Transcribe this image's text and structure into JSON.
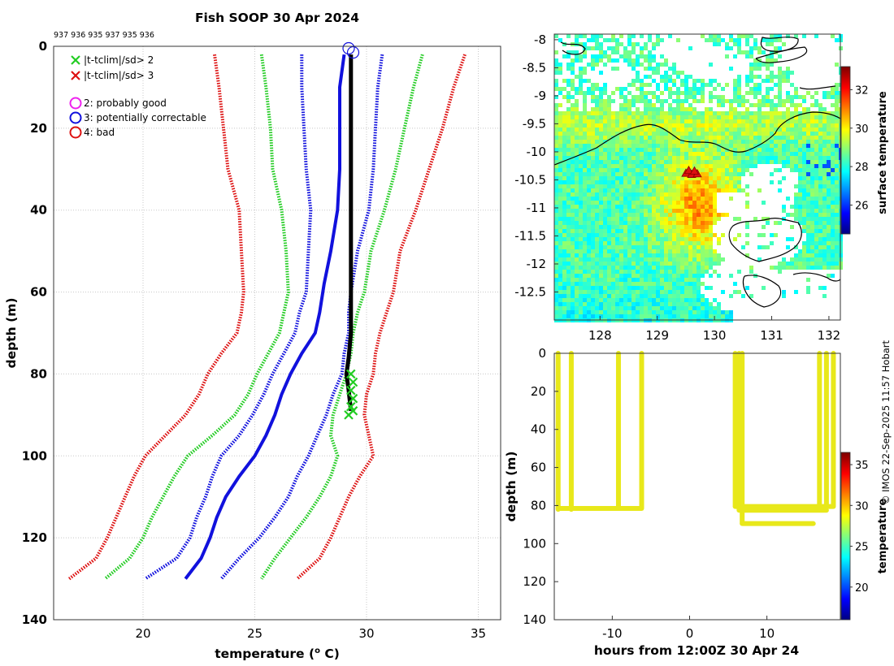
{
  "chart_data": [
    {
      "id": "profile",
      "type": "line",
      "title": "Fish SOOP 30 Apr 2024",
      "top_numbers": "937 936 935 937 935 936",
      "xlabel": "temperature (",
      "xlabel_sup": "o",
      "xlabel_end": " C)",
      "ylabel": "depth (m)",
      "xlim": [
        16,
        36
      ],
      "ylim": [
        0,
        140
      ],
      "y_reversed": true,
      "grid": true,
      "xticks": [
        20,
        25,
        30,
        35
      ],
      "yticks": [
        0,
        20,
        40,
        60,
        80,
        100,
        120,
        140
      ],
      "series": [
        {
          "name": "clim-3sd-low",
          "color": "#dd1111",
          "style": "dotted",
          "points": [
            [
              23.2,
              2
            ],
            [
              23.4,
              10
            ],
            [
              23.6,
              20
            ],
            [
              23.8,
              30
            ],
            [
              24.3,
              40
            ],
            [
              24.4,
              50
            ],
            [
              24.5,
              60
            ],
            [
              24.4,
              65
            ],
            [
              24.2,
              70
            ],
            [
              23.5,
              75
            ],
            [
              22.9,
              80
            ],
            [
              22.5,
              85
            ],
            [
              21.9,
              90
            ],
            [
              21.0,
              95
            ],
            [
              20.1,
              100
            ],
            [
              19.6,
              105
            ],
            [
              19.2,
              110
            ],
            [
              18.8,
              115
            ],
            [
              18.4,
              120
            ],
            [
              17.9,
              125
            ],
            [
              16.7,
              130
            ]
          ]
        },
        {
          "name": "clim-2sd-low",
          "color": "#22cc22",
          "style": "dotted",
          "points": [
            [
              25.3,
              2
            ],
            [
              25.5,
              10
            ],
            [
              25.7,
              20
            ],
            [
              25.8,
              30
            ],
            [
              26.2,
              40
            ],
            [
              26.4,
              50
            ],
            [
              26.5,
              60
            ],
            [
              26.3,
              65
            ],
            [
              26.1,
              70
            ],
            [
              25.6,
              75
            ],
            [
              25.1,
              80
            ],
            [
              24.7,
              85
            ],
            [
              24.1,
              90
            ],
            [
              23.1,
              95
            ],
            [
              22.0,
              100
            ],
            [
              21.4,
              105
            ],
            [
              20.9,
              110
            ],
            [
              20.4,
              115
            ],
            [
              20.0,
              120
            ],
            [
              19.4,
              125
            ],
            [
              18.3,
              130
            ]
          ]
        },
        {
          "name": "clim-mean",
          "color": "#1111dd",
          "style": "solid",
          "points": [
            [
              29.0,
              2
            ],
            [
              28.8,
              10
            ],
            [
              28.8,
              20
            ],
            [
              28.8,
              30
            ],
            [
              28.7,
              40
            ],
            [
              28.4,
              50
            ],
            [
              28.1,
              58
            ],
            [
              27.9,
              65
            ],
            [
              27.7,
              70
            ],
            [
              27.1,
              75
            ],
            [
              26.6,
              80
            ],
            [
              26.2,
              85
            ],
            [
              25.9,
              90
            ],
            [
              25.5,
              95
            ],
            [
              25.0,
              100
            ],
            [
              24.3,
              105
            ],
            [
              23.7,
              110
            ],
            [
              23.3,
              115
            ],
            [
              23.0,
              120
            ],
            [
              22.6,
              125
            ],
            [
              21.9,
              130
            ]
          ]
        },
        {
          "name": "clim-1sd-low",
          "color": "#1111dd",
          "style": "dotted",
          "points": [
            [
              27.1,
              2
            ],
            [
              27.1,
              10
            ],
            [
              27.2,
              20
            ],
            [
              27.3,
              30
            ],
            [
              27.5,
              40
            ],
            [
              27.4,
              50
            ],
            [
              27.3,
              60
            ],
            [
              27.0,
              65
            ],
            [
              26.8,
              70
            ],
            [
              26.3,
              75
            ],
            [
              25.8,
              80
            ],
            [
              25.4,
              85
            ],
            [
              24.9,
              90
            ],
            [
              24.3,
              95
            ],
            [
              23.5,
              100
            ],
            [
              23.1,
              105
            ],
            [
              22.8,
              110
            ],
            [
              22.4,
              115
            ],
            [
              22.1,
              120
            ],
            [
              21.5,
              125
            ],
            [
              20.1,
              130
            ]
          ]
        },
        {
          "name": "clim-1sd-high",
          "color": "#1111dd",
          "style": "dotted",
          "points": [
            [
              30.7,
              2
            ],
            [
              30.5,
              10
            ],
            [
              30.4,
              20
            ],
            [
              30.3,
              30
            ],
            [
              30.1,
              40
            ],
            [
              29.6,
              50
            ],
            [
              29.3,
              60
            ],
            [
              29.2,
              65
            ],
            [
              29.2,
              70
            ],
            [
              29.0,
              75
            ],
            [
              28.9,
              80
            ],
            [
              28.5,
              85
            ],
            [
              28.2,
              90
            ],
            [
              27.8,
              95
            ],
            [
              27.4,
              100
            ],
            [
              26.9,
              105
            ],
            [
              26.5,
              110
            ],
            [
              25.9,
              115
            ],
            [
              25.2,
              120
            ],
            [
              24.3,
              125
            ],
            [
              23.5,
              130
            ]
          ]
        },
        {
          "name": "clim-2sd-high",
          "color": "#22cc22",
          "style": "dotted",
          "points": [
            [
              32.5,
              2
            ],
            [
              32.1,
              10
            ],
            [
              31.7,
              20
            ],
            [
              31.3,
              30
            ],
            [
              30.8,
              40
            ],
            [
              30.2,
              50
            ],
            [
              29.9,
              60
            ],
            [
              29.6,
              65
            ],
            [
              29.4,
              70
            ],
            [
              29.3,
              75
            ],
            [
              29.1,
              80
            ],
            [
              28.8,
              85
            ],
            [
              28.5,
              90
            ],
            [
              28.4,
              95
            ],
            [
              28.7,
              100
            ],
            [
              28.4,
              105
            ],
            [
              27.9,
              110
            ],
            [
              27.3,
              115
            ],
            [
              26.6,
              120
            ],
            [
              25.9,
              125
            ],
            [
              25.3,
              130
            ]
          ]
        },
        {
          "name": "clim-3sd-high",
          "color": "#dd1111",
          "style": "dotted",
          "points": [
            [
              34.4,
              2
            ],
            [
              33.9,
              10
            ],
            [
              33.4,
              20
            ],
            [
              32.8,
              30
            ],
            [
              32.2,
              40
            ],
            [
              31.5,
              50
            ],
            [
              31.2,
              60
            ],
            [
              30.9,
              65
            ],
            [
              30.6,
              70
            ],
            [
              30.4,
              75
            ],
            [
              30.3,
              80
            ],
            [
              30.0,
              85
            ],
            [
              29.9,
              90
            ],
            [
              30.1,
              95
            ],
            [
              30.3,
              100
            ],
            [
              29.7,
              105
            ],
            [
              29.2,
              110
            ],
            [
              28.8,
              115
            ],
            [
              28.4,
              120
            ],
            [
              27.9,
              125
            ],
            [
              26.9,
              130
            ]
          ]
        }
      ],
      "observed": {
        "name": "profile",
        "color": "#000000",
        "points": [
          [
            29.3,
            2
          ],
          [
            29.3,
            20
          ],
          [
            29.3,
            40
          ],
          [
            29.3,
            60
          ],
          [
            29.3,
            70
          ],
          [
            29.2,
            76
          ],
          [
            29.1,
            80
          ],
          [
            29.2,
            84
          ],
          [
            29.3,
            89
          ]
        ]
      },
      "flag_markers": [
        [
          29.3,
          80
        ],
        [
          29.4,
          82
        ],
        [
          29.3,
          84
        ],
        [
          29.4,
          86
        ],
        [
          29.3,
          88
        ],
        [
          29.4,
          89
        ],
        [
          29.2,
          90
        ]
      ],
      "qc_circles": [
        [
          29.2,
          0.5
        ],
        [
          29.4,
          1.5
        ]
      ],
      "legend_marks": [
        {
          "label": "|t-tclim|/sd> 2",
          "color": "#22cc22",
          "kind": "x"
        },
        {
          "label": "|t-tclim|/sd> 3",
          "color": "#dd1111",
          "kind": "x"
        }
      ],
      "legend_circles": [
        {
          "label": "2: probably good",
          "color": "#ee22ee",
          "kind": "o"
        },
        {
          "label": "3: potentially correctable",
          "color": "#1111dd",
          "kind": "o"
        },
        {
          "label": "4: bad",
          "color": "#dd1111",
          "kind": "o"
        }
      ]
    },
    {
      "id": "map",
      "type": "heatmap",
      "xlim": [
        127.2,
        132.2
      ],
      "ylim": [
        -13.0,
        -7.9
      ],
      "xticks": [
        128,
        129,
        130,
        131,
        132
      ],
      "yticks": [
        -8,
        -8.5,
        -9,
        -9.5,
        -10,
        -10.5,
        -11,
        -11.5,
        -12,
        -12.5
      ],
      "colorbar_label": "surface temperature",
      "colorbar_range": [
        24.5,
        33.2
      ],
      "colorbar_ticks": [
        26,
        28,
        30,
        32
      ],
      "track": [
        [
          129.5,
          -10.38
        ],
        [
          129.6,
          -10.4
        ],
        [
          129.7,
          -10.39
        ],
        [
          129.55,
          -10.33
        ],
        [
          129.65,
          -10.34
        ]
      ],
      "track_color": "#dd1111"
    },
    {
      "id": "timeseries",
      "type": "scatter",
      "xlabel": "hours from 12:00Z 30 Apr 24",
      "ylabel": "depth (m)",
      "xlim": [
        -17.5,
        19.5
      ],
      "ylim": [
        0,
        140
      ],
      "y_reversed": true,
      "xticks": [
        -10,
        0,
        10
      ],
      "yticks": [
        0,
        20,
        40,
        60,
        80,
        100,
        120,
        140
      ],
      "colorbar_label": "temperature",
      "colorbar_range": [
        16,
        36.5
      ],
      "colorbar_ticks": [
        20,
        25,
        30,
        35
      ],
      "point_color": "#e8e81a",
      "profiles": [
        {
          "t": -17.0,
          "maxd": 82
        },
        {
          "t": -15.3,
          "maxd": 82
        },
        {
          "t": -9.2,
          "maxd": 81
        },
        {
          "t": -6.2,
          "maxd": 81
        },
        {
          "t": 5.9,
          "maxd": 80
        },
        {
          "t": 6.4,
          "maxd": 82
        },
        {
          "t": 6.8,
          "maxd": 89
        },
        {
          "t": 16.8,
          "maxd": 82
        },
        {
          "t": 17.7,
          "maxd": 81
        },
        {
          "t": 18.6,
          "maxd": 80
        }
      ],
      "bottoms": [
        [
          -17.0,
          -6.2,
          81.5
        ],
        [
          5.9,
          18.6,
          80.5
        ],
        [
          6.4,
          17.7,
          82.5
        ],
        [
          6.8,
          16.0,
          89.5
        ]
      ]
    }
  ],
  "credit": "© IMOS 22-Sep-2025 11:57 Hobart"
}
